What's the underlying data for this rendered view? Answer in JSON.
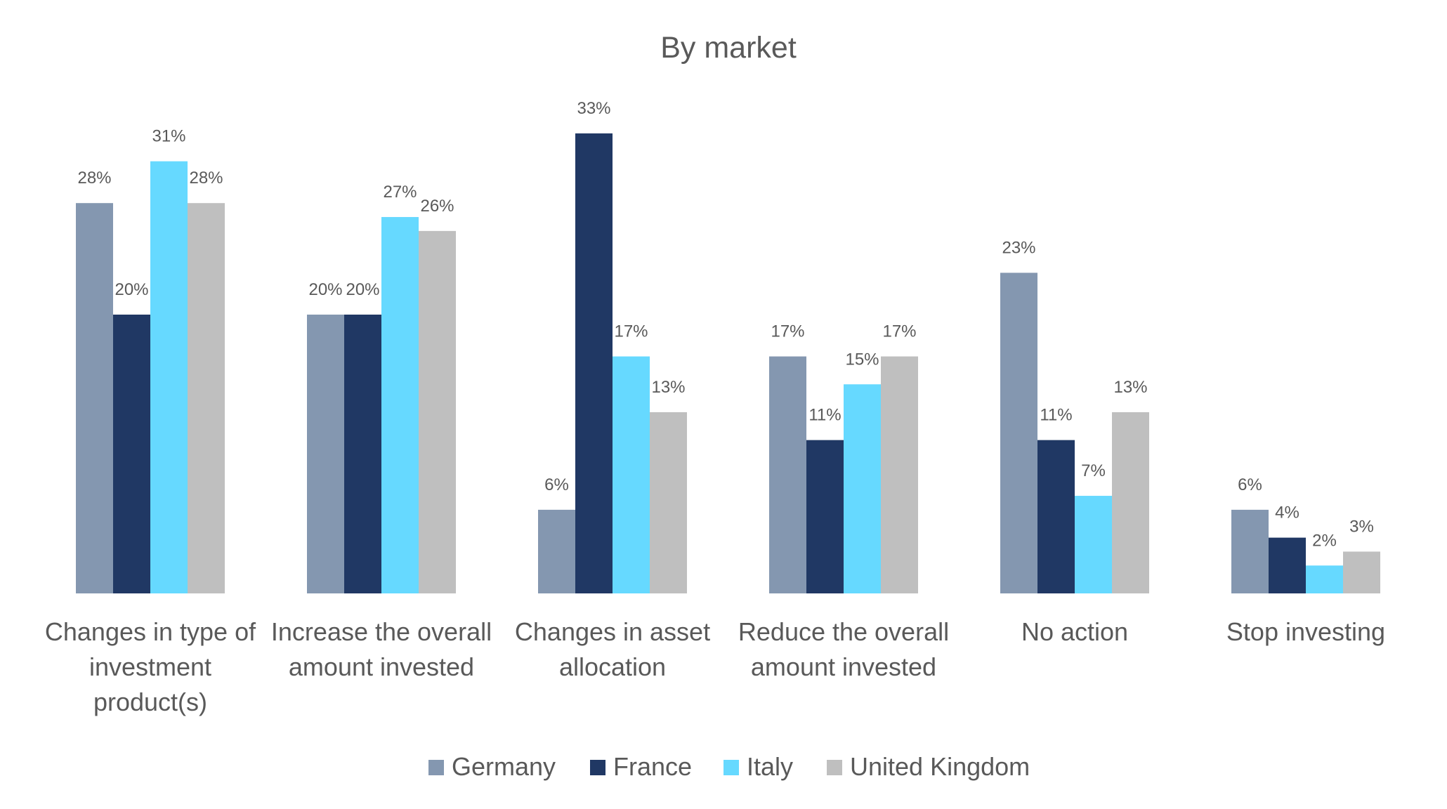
{
  "chart_data": {
    "type": "bar",
    "title": "By market",
    "xlabel": "",
    "ylabel": "",
    "ylim": [
      0,
      35
    ],
    "grid": false,
    "legend_position": "bottom",
    "categories": [
      [
        "Changes in type of",
        "investment",
        "product(s)"
      ],
      [
        "Increase the overall",
        "amount invested"
      ],
      [
        "Changes in asset",
        "allocation"
      ],
      [
        "Reduce the overall",
        "amount invested"
      ],
      [
        "No action"
      ],
      [
        "Stop investing"
      ]
    ],
    "series": [
      {
        "name": "Germany",
        "color": "#8497b0",
        "values": [
          28,
          20,
          6,
          17,
          23,
          6
        ],
        "labels": [
          "28%",
          "20%",
          "6%",
          "17%",
          "23%",
          "6%"
        ]
      },
      {
        "name": "France",
        "color": "#203864",
        "values": [
          20,
          20,
          33,
          11,
          11,
          4
        ],
        "labels": [
          "20%",
          "20%",
          "33%",
          "11%",
          "11%",
          "4%"
        ]
      },
      {
        "name": "Italy",
        "color": "#66d9ff",
        "values": [
          31,
          27,
          17,
          15,
          7,
          2
        ],
        "labels": [
          "31%",
          "27%",
          "17%",
          "15%",
          "7%",
          "2%"
        ]
      },
      {
        "name": "United Kingdom",
        "color": "#bfbfbf",
        "values": [
          28,
          26,
          13,
          17,
          13,
          3
        ],
        "labels": [
          "28%",
          "26%",
          "13%",
          "17%",
          "13%",
          "3%"
        ]
      }
    ]
  }
}
